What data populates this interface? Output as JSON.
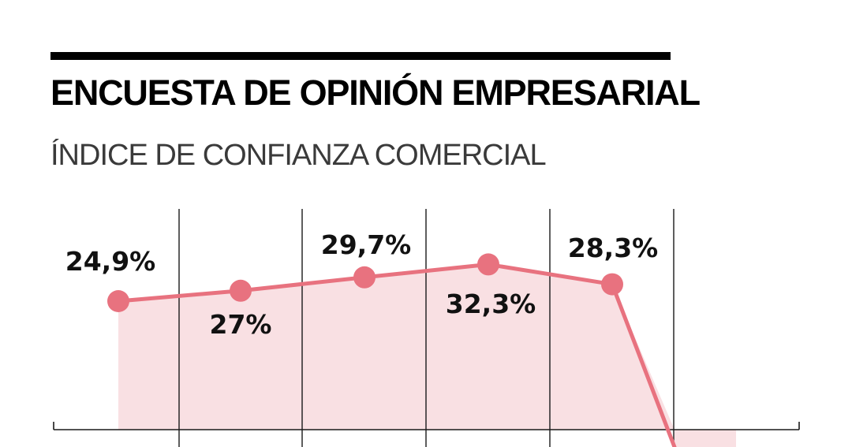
{
  "header": {
    "title": "ENCUESTA DE OPINIÓN EMPRESARIAL",
    "subtitle": "ÍNDICE DE CONFIANZA COMERCIAL"
  },
  "colors": {
    "line": "#e8727f",
    "fill": "#f9e0e3",
    "rule": "#000000",
    "grid": "#1a1a1a"
  },
  "chart_data": {
    "type": "area",
    "title": "ÍNDICE DE CONFIANZA COMERCIAL",
    "xlabel": "",
    "ylabel": "",
    "grid": true,
    "series": [
      {
        "values": [
          24.9,
          27,
          29.7,
          32.3,
          28.3
        ]
      }
    ],
    "data_labels": [
      "24,9%",
      "27%",
      "29,7%",
      "32,3%",
      "28,3%"
    ],
    "note": "line drops sharply below the visible baseline after the last labeled point"
  }
}
